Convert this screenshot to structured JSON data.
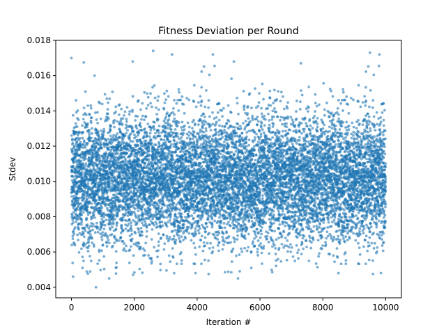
{
  "chart_data": {
    "type": "scatter",
    "title": "Fitness Deviation per Round",
    "xlabel": "Iteration #",
    "ylabel": "Stdev",
    "xlim": [
      -500,
      10500
    ],
    "ylim": [
      0.0034,
      0.018
    ],
    "xticks": [
      0,
      2000,
      4000,
      6000,
      8000,
      10000
    ],
    "xtick_labels": [
      "0",
      "2000",
      "4000",
      "6000",
      "8000",
      "10000"
    ],
    "yticks": [
      0.004,
      0.006,
      0.008,
      0.01,
      0.012,
      0.014,
      0.016,
      0.018
    ],
    "ytick_labels": [
      "0.004",
      "0.006",
      "0.008",
      "0.010",
      "0.012",
      "0.014",
      "0.016",
      "0.018"
    ],
    "grid": false,
    "legend": "none",
    "marker_color": "#1f77b4",
    "marker_alpha": 0.6,
    "series": [
      {
        "x_range": [
          0,
          10000
        ],
        "n_points": 10000,
        "distribution": "normal",
        "mean": 0.0101,
        "stdev": 0.0018,
        "notable_points": [
          {
            "x": 0,
            "y": 0.017
          },
          {
            "x": 2600,
            "y": 0.0174
          },
          {
            "x": 9500,
            "y": 0.0173
          },
          {
            "x": 9800,
            "y": 0.0172
          },
          {
            "x": 3200,
            "y": 0.0172
          },
          {
            "x": 4500,
            "y": 0.0172
          },
          {
            "x": 1950,
            "y": 0.0168
          },
          {
            "x": 7300,
            "y": 0.0167
          },
          {
            "x": 780,
            "y": 0.004
          },
          {
            "x": 5300,
            "y": 0.0045
          },
          {
            "x": 1200,
            "y": 0.0045
          },
          {
            "x": 50,
            "y": 0.0046
          },
          {
            "x": 3950,
            "y": 0.0048
          },
          {
            "x": 9850,
            "y": 0.0048
          }
        ]
      }
    ]
  }
}
